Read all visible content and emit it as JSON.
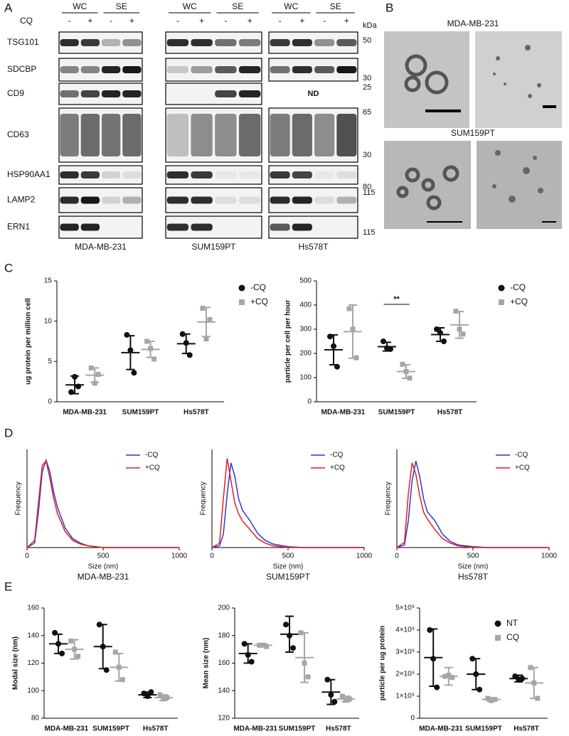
{
  "panel_labels": [
    "A",
    "B",
    "C",
    "D",
    "E"
  ],
  "blot": {
    "cq_label": "CQ",
    "kda_label": "kDa",
    "nd": "ND",
    "rows": [
      "TSG101",
      "SDCBP",
      "CD9",
      "CD63",
      "HSP90AA1",
      "LAMP2",
      "ERN1"
    ],
    "kda_markers": [
      50,
      30,
      25,
      65,
      30,
      80,
      115,
      115
    ],
    "groups": [
      {
        "cell_line": "MDA-MB-231",
        "fractions": [
          "WC",
          "SE"
        ],
        "treatments": [
          "-",
          "+",
          "-",
          "+"
        ]
      },
      {
        "cell_line": "SUM159PT",
        "fractions": [
          "WC",
          "SE"
        ],
        "treatments": [
          "-",
          "+",
          "-",
          "+"
        ]
      },
      {
        "cell_line": "Hs578T",
        "fractions": [
          "WC",
          "SE"
        ],
        "treatments": [
          "-",
          "+",
          "-",
          "+"
        ]
      }
    ]
  },
  "em": {
    "titles": [
      "MDA-MB-231",
      "SUM159PT"
    ]
  },
  "chart_data": [
    {
      "type": "dot",
      "ylabel": "ug protein per million cell",
      "categories": [
        "MDA-MB-231",
        "SUM159PT",
        "Hs578T"
      ],
      "ylim": [
        0,
        15
      ],
      "yticks": [
        0,
        5,
        10,
        15
      ],
      "legend": "right",
      "series": [
        {
          "name": "-CQ",
          "color": "#111111",
          "marker": "circle",
          "values": [
            2.1,
            6.1,
            7.2
          ],
          "errors": [
            1.1,
            2.1,
            1.2
          ],
          "points": [
            [
              1.2,
              3.1,
              1.9
            ],
            [
              8.3,
              6.4,
              3.6
            ],
            [
              8.4,
              7.3,
              5.8
            ]
          ]
        },
        {
          "name": "+CQ",
          "color": "#a6a6a6",
          "marker": "square",
          "values": [
            3.3,
            6.5,
            9.9
          ],
          "errors": [
            0.9,
            1.0,
            1.8
          ],
          "points": [
            [
              4.2,
              2.3,
              3.4
            ],
            [
              7.5,
              6.6,
              5.3
            ],
            [
              11.6,
              7.8,
              10.2
            ]
          ]
        }
      ]
    },
    {
      "type": "dot",
      "ylabel": "particle per cell per hour",
      "categories": [
        "MDA-MB-231",
        "SUM159PT",
        "Hs578T"
      ],
      "ylim": [
        0,
        500
      ],
      "yticks": [
        0,
        100,
        200,
        300,
        400,
        500
      ],
      "legend": "right",
      "annotation": "**",
      "series": [
        {
          "name": "-CQ",
          "color": "#111111",
          "marker": "circle",
          "values": [
            215,
            228,
            278
          ],
          "errors": [
            62,
            18,
            28
          ],
          "points": [
            [
              270,
              230,
              145
            ],
            [
              250,
              222,
              218
            ],
            [
              300,
              285,
              250
            ]
          ]
        },
        {
          "name": "+CQ",
          "color": "#a6a6a6",
          "marker": "square",
          "values": [
            290,
            125,
            318
          ],
          "errors": [
            110,
            28,
            55
          ],
          "points": [
            [
              385,
              300,
              182
            ],
            [
              155,
              125,
              98
            ],
            [
              375,
              300,
              280
            ]
          ]
        }
      ]
    },
    {
      "type": "line",
      "title": "MDA-MB-231",
      "xlabel": "Size (nm)",
      "ylabel": "Frequency",
      "xlim": [
        0,
        1000
      ],
      "xticks": [
        0,
        500,
        1000
      ],
      "ylim": [
        0,
        1.1
      ],
      "legend": "top-right",
      "x": [
        0,
        50,
        75,
        100,
        125,
        150,
        175,
        200,
        250,
        300,
        350,
        400,
        500,
        600,
        1000
      ],
      "series": [
        {
          "name": "-CQ",
          "color": "#3434d0",
          "values": [
            0,
            0.05,
            0.4,
            0.85,
            0.98,
            0.85,
            0.62,
            0.45,
            0.22,
            0.1,
            0.05,
            0.02,
            0,
            0,
            0
          ]
        },
        {
          "name": "+CQ",
          "color": "#e02020",
          "values": [
            0,
            0.08,
            0.5,
            0.92,
            0.97,
            0.78,
            0.55,
            0.38,
            0.18,
            0.08,
            0.04,
            0.02,
            0,
            0,
            0
          ]
        }
      ]
    },
    {
      "type": "line",
      "title": "SUM159PT",
      "xlabel": "Size (nm)",
      "ylabel": "Frequency",
      "xlim": [
        0,
        1000
      ],
      "xticks": [
        0,
        500,
        1000
      ],
      "ylim": [
        0,
        1.1
      ],
      "legend": "top-right",
      "x": [
        0,
        50,
        75,
        100,
        125,
        150,
        175,
        200,
        250,
        300,
        350,
        400,
        500,
        600,
        1000
      ],
      "series": [
        {
          "name": "-CQ",
          "color": "#3434d0",
          "values": [
            0,
            0.02,
            0.15,
            0.6,
            0.95,
            0.8,
            0.55,
            0.42,
            0.3,
            0.16,
            0.08,
            0.04,
            0.01,
            0,
            0
          ]
        },
        {
          "name": "+CQ",
          "color": "#e02020",
          "values": [
            0,
            0.05,
            0.55,
            1.0,
            0.75,
            0.5,
            0.38,
            0.3,
            0.2,
            0.1,
            0.05,
            0.02,
            0,
            0,
            0
          ]
        }
      ]
    },
    {
      "type": "line",
      "title": "Hs578T",
      "xlabel": "Size (nm)",
      "ylabel": "Frequency",
      "xlim": [
        0,
        1000
      ],
      "xticks": [
        0,
        500,
        1000
      ],
      "ylim": [
        0,
        1.1
      ],
      "legend": "top-right",
      "x": [
        0,
        50,
        75,
        100,
        125,
        150,
        175,
        200,
        250,
        300,
        350,
        400,
        500,
        600,
        1000
      ],
      "series": [
        {
          "name": "-CQ",
          "color": "#3434d0",
          "values": [
            0,
            0.03,
            0.3,
            0.75,
            0.97,
            0.8,
            0.55,
            0.4,
            0.3,
            0.15,
            0.07,
            0.03,
            0.01,
            0,
            0
          ]
        },
        {
          "name": "+CQ",
          "color": "#e02020",
          "values": [
            0,
            0.06,
            0.6,
            0.95,
            0.82,
            0.58,
            0.4,
            0.32,
            0.2,
            0.1,
            0.05,
            0.02,
            0,
            0,
            0
          ]
        }
      ]
    },
    {
      "type": "dot",
      "ylabel": "Modal size (nm)",
      "categories": [
        "MDA-MB-231",
        "SUM159PT",
        "Hs578T"
      ],
      "ylim": [
        80,
        160
      ],
      "yticks": [
        80,
        100,
        120,
        140,
        160
      ],
      "series": [
        {
          "color": "#111111",
          "marker": "circle",
          "values": [
            134,
            132,
            97
          ],
          "errors": [
            7,
            16,
            2
          ],
          "points": [
            [
              142,
              134,
              127
            ],
            [
              148,
              132,
              115
            ],
            [
              98,
              96,
              99
            ]
          ]
        },
        {
          "color": "#a6a6a6",
          "marker": "square",
          "values": [
            130,
            117,
            95
          ],
          "errors": [
            7,
            10,
            2
          ],
          "points": [
            [
              136,
              130,
              125
            ],
            [
              128,
              117,
              108
            ],
            [
              97,
              94,
              95
            ]
          ]
        }
      ]
    },
    {
      "type": "dot",
      "ylabel": "Mean size (nm)",
      "categories": [
        "MDA-MB-231",
        "SUM159PT",
        "Hs578T"
      ],
      "ylim": [
        120,
        200
      ],
      "yticks": [
        120,
        140,
        160,
        180,
        200
      ],
      "series": [
        {
          "color": "#111111",
          "marker": "circle",
          "values": [
            167,
            181,
            139
          ],
          "errors": [
            7,
            13,
            9
          ],
          "points": [
            [
              174,
              166,
              161
            ],
            [
              188,
              180,
              171
            ],
            [
              148,
              137,
              132
            ]
          ]
        },
        {
          "color": "#a6a6a6",
          "marker": "square",
          "values": [
            173,
            164,
            134
          ],
          "errors": [
            1,
            18,
            2
          ],
          "points": [
            [
              173,
              173,
              172
            ],
            [
              182,
              160,
              150
            ],
            [
              136,
              133,
              134
            ]
          ]
        }
      ]
    },
    {
      "type": "dot",
      "ylabel": "particle per ug protein",
      "categories": [
        "MDA-MB-231",
        "SUM159PT",
        "Hs578T"
      ],
      "ylim": [
        0,
        5000000000.0
      ],
      "yticks": [
        0,
        {
          "value": 1000000000.0,
          "label": "1×10⁹"
        },
        {
          "value": 2000000000.0,
          "label": "2×10⁹"
        },
        {
          "value": 3000000000.0,
          "label": "3×10⁹"
        },
        {
          "value": 4000000000.0,
          "label": "4×10⁹"
        },
        {
          "value": 5000000000.0,
          "label": "5×10⁹"
        }
      ],
      "legend": "top-right",
      "series": [
        {
          "name": "NT",
          "color": "#111111",
          "marker": "circle",
          "values": [
            2750000000.0,
            2000000000.0,
            1800000000.0
          ],
          "errors": [
            1300000000.0,
            700000000.0,
            150000000.0
          ],
          "points": [
            [
              4000000000.0,
              2700000000.0,
              1400000000.0
            ],
            [
              2700000000.0,
              2000000000.0,
              1300000000.0
            ],
            [
              1900000000.0,
              1750000000.0,
              1800000000.0
            ]
          ]
        },
        {
          "name": "CQ",
          "color": "#a6a6a6",
          "marker": "square",
          "values": [
            1900000000.0,
            850000000.0,
            1600000000.0
          ],
          "errors": [
            400000000.0,
            80000000.0,
            700000000.0
          ],
          "points": [
            [
              1900000000.0,
              1950000000.0,
              1850000000.0
            ],
            [
              900000000.0,
              800000000.0,
              850000000.0
            ],
            [
              2300000000.0,
              1600000000.0,
              900000000.0
            ]
          ]
        }
      ]
    }
  ]
}
